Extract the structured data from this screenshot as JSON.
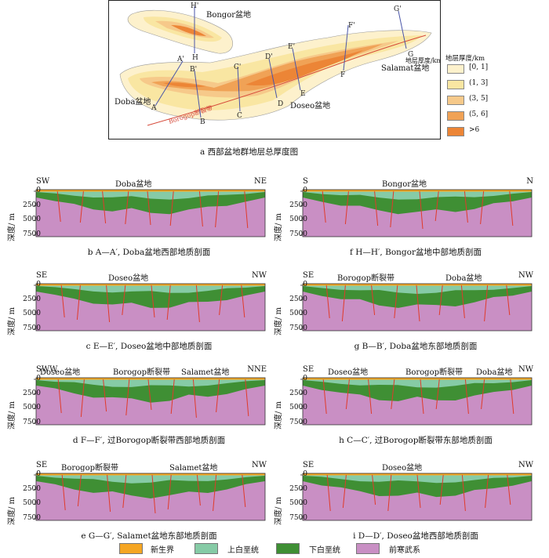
{
  "map": {
    "caption": "a 西部盆地群地层总厚度图",
    "basins": [
      "Bongor盆地",
      "Doba盆地",
      "Doseo盆地",
      "Salamat盆地"
    ],
    "fault": "Borogop断裂带",
    "section_letters": [
      "H'",
      "H",
      "A'",
      "A",
      "B'",
      "B",
      "C'",
      "C",
      "D'",
      "D",
      "E'",
      "E",
      "F'",
      "F",
      "G'",
      "G"
    ],
    "legend_title": "地层厚度/km",
    "legend": [
      {
        "label": "[0, 1]",
        "color": "#fdf1cc"
      },
      {
        "label": "(1, 3]",
        "color": "#f9e6a2"
      },
      {
        "label": "(3, 5]",
        "color": "#f6c98a"
      },
      {
        "label": "(5, 6]",
        "color": "#f0a256"
      },
      {
        "label": ">6",
        "color": "#ec8536"
      }
    ]
  },
  "ylabel": "深度/ m",
  "yticks": [
    "0",
    "2500",
    "5000",
    "7500"
  ],
  "panels": {
    "b": {
      "left": "SW",
      "right": "NE",
      "labels": [
        "Doba盆地"
      ],
      "caption": "b A—A′, Doba盆地西部地质剖面"
    },
    "f": {
      "left": "S",
      "right": "N",
      "labels": [
        "Bongor盆地"
      ],
      "caption": "f H—H′, Bongor盆地中部地质剖面"
    },
    "c": {
      "left": "SE",
      "right": "NW",
      "labels": [
        "Doseo盆地"
      ],
      "caption": "c E—E′, Doseo盆地中部地质剖面"
    },
    "g": {
      "left": "SE",
      "right": "NW",
      "labels": [
        "Borogop断裂带",
        "Doba盆地"
      ],
      "caption": "g B—B′, Doba盆地东部地质剖面"
    },
    "d": {
      "left": "SWW",
      "right": "NNE",
      "labels": [
        "Doseo盆地",
        "Borogop断裂带",
        "Salamet盆地"
      ],
      "caption": "d F—F′, 过Borogop断裂带西部地质剖面"
    },
    "h": {
      "left": "SE",
      "right": "NW",
      "labels": [
        "Doseo盆地",
        "Borogop断裂带",
        "Doba盆地"
      ],
      "caption": "h C—C′, 过Borogop断裂带东部地质剖面"
    },
    "e": {
      "left": "SE",
      "right": "NW",
      "labels": [
        "Borogop断裂带",
        "Salamet盆地"
      ],
      "caption": "e G—G′, Salamet盆地东部地质剖面"
    },
    "i": {
      "left": "SE",
      "right": "NW",
      "labels": [
        "Doseo盆地"
      ],
      "caption": "i D—D′, Doseo盆地西部地质剖面"
    }
  },
  "legend": [
    {
      "label": "新生界",
      "color": "#f5a623"
    },
    {
      "label": "上白垩统",
      "color": "#86cba6"
    },
    {
      "label": "下白垩统",
      "color": "#3f8f34"
    },
    {
      "label": "前寒武系",
      "color": "#c98fc4"
    }
  ]
}
